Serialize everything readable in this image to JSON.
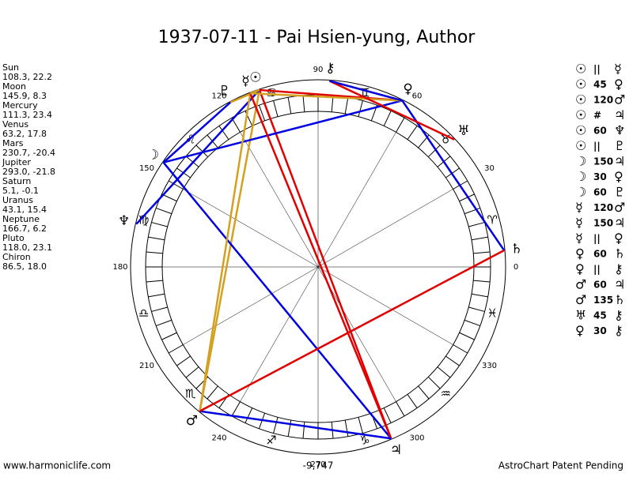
{
  "header": {
    "title": "1937-07-11 - Pai Hsien-yung, Author"
  },
  "planets": [
    {
      "name": "Sun",
      "glyph": "☉",
      "position": "108.3, 22.2"
    },
    {
      "name": "Moon",
      "glyph": "☽",
      "position": "145.9, 8.3"
    },
    {
      "name": "Mercury",
      "glyph": "☿",
      "position": "111.3, 23.4"
    },
    {
      "name": "Venus",
      "glyph": "♀",
      "position": "63.2, 17.8"
    },
    {
      "name": "Mars",
      "glyph": "♂",
      "position": "230.7, -20.4"
    },
    {
      "name": "Jupiter",
      "glyph": "♃",
      "position": "293.0, -21.8"
    },
    {
      "name": "Saturn",
      "glyph": "♄",
      "position": "5.1, -0.1"
    },
    {
      "name": "Uranus",
      "glyph": "♅",
      "position": "43.1, 15.4"
    },
    {
      "name": "Neptune",
      "glyph": "♆",
      "position": "166.7, 6.2"
    },
    {
      "name": "Pluto",
      "glyph": "♇",
      "position": "118.0, 23.1"
    },
    {
      "name": "Chiron",
      "glyph": "⚷",
      "position": "86.5, 18.0"
    }
  ],
  "signs": [
    "♈",
    "♉",
    "♊",
    "♋",
    "♌",
    "♍",
    "♎",
    "♏",
    "♐",
    "♑",
    "♒",
    "♓"
  ],
  "degree_labels": [
    "0",
    "30",
    "60",
    "90",
    "120",
    "150",
    "180",
    "210",
    "240",
    "270",
    "300",
    "330"
  ],
  "aspects": [
    {
      "from": 0,
      "aspect": "||",
      "to": 2,
      "color": "#d4a020"
    },
    {
      "from": 0,
      "aspect": "45",
      "to": 3,
      "color": "#e00000"
    },
    {
      "from": 0,
      "aspect": "120",
      "to": 4,
      "color": "#d4a020"
    },
    {
      "from": 0,
      "aspect": "#",
      "to": 5,
      "color": "#e00000"
    },
    {
      "from": 0,
      "aspect": "60",
      "to": 8,
      "color": "#0000e0"
    },
    {
      "from": 0,
      "aspect": "||",
      "to": 9,
      "color": "#d4a020"
    },
    {
      "from": 1,
      "aspect": "150",
      "to": 5,
      "color": "#0000e0"
    },
    {
      "from": 1,
      "aspect": "30",
      "to": 3,
      "color": "#0000e0"
    },
    {
      "from": 1,
      "aspect": "60",
      "to": 9,
      "color": "#0000e0"
    },
    {
      "from": 2,
      "aspect": "120",
      "to": 4,
      "color": "#d4a020"
    },
    {
      "from": 2,
      "aspect": "150",
      "to": 5,
      "color": "#e00000"
    },
    {
      "from": 2,
      "aspect": "||",
      "to": 3,
      "color": "#d4a020"
    },
    {
      "from": 3,
      "aspect": "60",
      "to": 6,
      "color": "#0000e0"
    },
    {
      "from": 3,
      "aspect": "||",
      "to": 10,
      "color": "#d4a020"
    },
    {
      "from": 4,
      "aspect": "60",
      "to": 5,
      "color": "#0000e0"
    },
    {
      "from": 4,
      "aspect": "135",
      "to": 6,
      "color": "#e00000"
    },
    {
      "from": 7,
      "aspect": "45",
      "to": 10,
      "color": "#e00000"
    },
    {
      "from": 3,
      "aspect": "30",
      "to": 10,
      "color": "#0000e0"
    }
  ],
  "center_value": "-9,747",
  "footer": {
    "left": "www.harmoniclife.com",
    "right": "AstroChart Patent Pending"
  }
}
